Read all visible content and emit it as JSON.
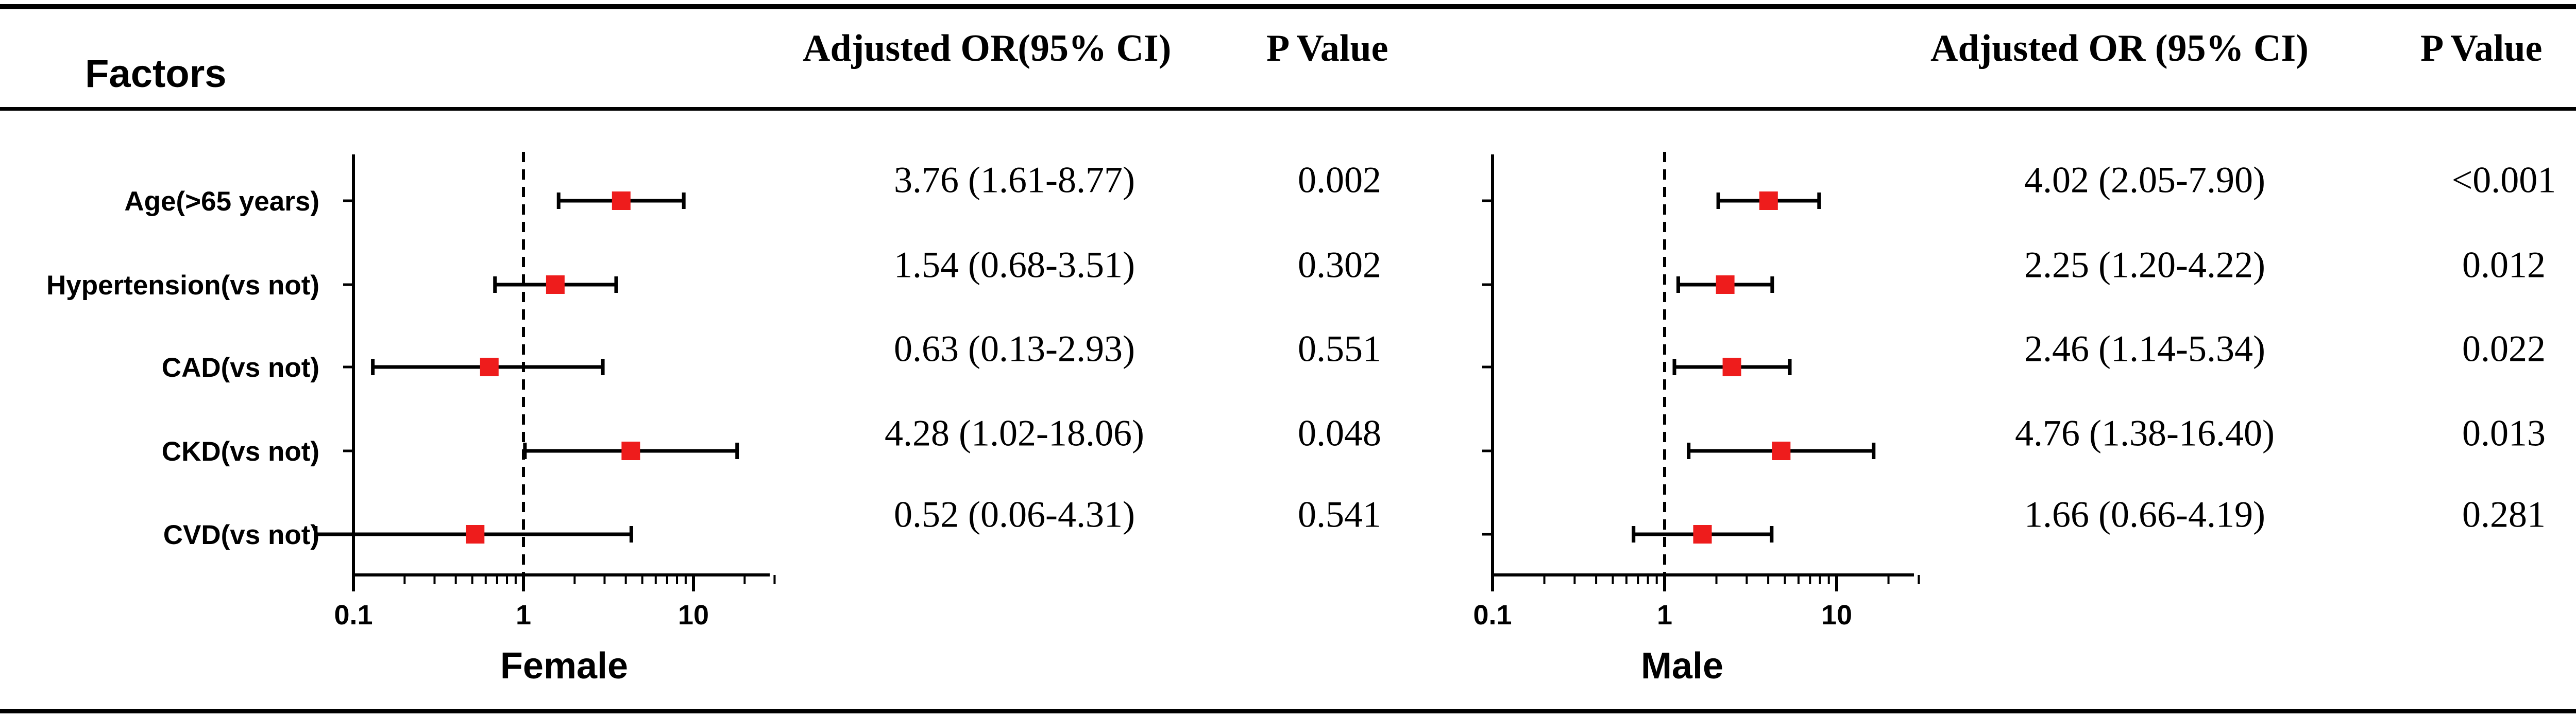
{
  "header": {
    "factors_label": "Factors",
    "female_or_label": "Adjusted OR(95% CI)",
    "female_p_label": "P Value",
    "male_or_label": "Adjusted OR (95% CI)",
    "male_p_label": "P Value"
  },
  "colors": {
    "marker": "#ee1c1c",
    "line": "#000000"
  },
  "chart_data": [
    {
      "type": "forest",
      "xlabel": "Female",
      "x_scale": "log",
      "xlim": [
        0.1,
        30
      ],
      "reference_line": 1,
      "ticks": [
        0.1,
        1,
        10
      ],
      "tick_labels": [
        "0.1",
        "1",
        "10"
      ],
      "categories": [
        "Age(>65 years)",
        "Hypertension(vs not)",
        "CAD(vs not)",
        "CKD(vs not)",
        "CVD(vs not)"
      ],
      "or": [
        3.76,
        1.54,
        0.63,
        4.28,
        0.52
      ],
      "ci_low": [
        1.61,
        0.68,
        0.13,
        1.02,
        0.06
      ],
      "ci_high": [
        8.77,
        3.51,
        2.93,
        18.06,
        4.31
      ],
      "or_text": [
        "3.76 (1.61-8.77)",
        "1.54 (0.68-3.51)",
        "0.63 (0.13-2.93)",
        "4.28 (1.02-18.06)",
        "0.52 (0.06-4.31)"
      ],
      "p_text": [
        "0.002",
        "0.302",
        "0.551",
        "0.048",
        "0.541"
      ]
    },
    {
      "type": "forest",
      "xlabel": "Male",
      "x_scale": "log",
      "xlim": [
        0.1,
        30
      ],
      "reference_line": 1,
      "ticks": [
        0.1,
        1,
        10
      ],
      "tick_labels": [
        "0.1",
        "1",
        "10"
      ],
      "categories": [
        "Age(>65 years)",
        "Hypertension(vs not)",
        "CAD(vs not)",
        "CKD(vs not)",
        "CVD(vs not)"
      ],
      "or": [
        4.02,
        2.25,
        2.46,
        4.76,
        1.66
      ],
      "ci_low": [
        2.05,
        1.2,
        1.14,
        1.38,
        0.66
      ],
      "ci_high": [
        7.9,
        4.22,
        5.34,
        16.4,
        4.19
      ],
      "or_text": [
        "4.02 (2.05-7.90)",
        "2.25 (1.20-4.22)",
        "2.46 (1.14-5.34)",
        "4.76 (1.38-16.40)",
        "1.66 (0.66-4.19)"
      ],
      "p_text": [
        "<0.001",
        "0.012",
        "0.022",
        "0.013",
        "0.281"
      ]
    }
  ]
}
